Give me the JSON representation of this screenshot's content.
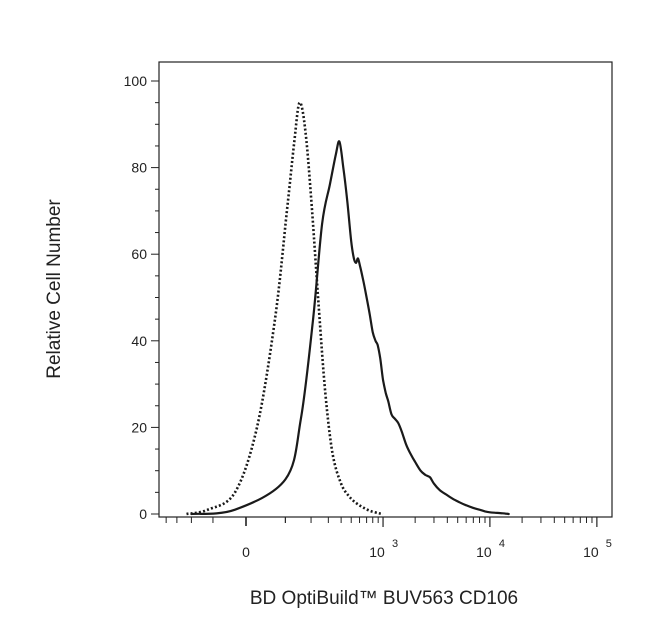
{
  "chart_data": {
    "type": "line",
    "title": "",
    "xlabel": "BD OptiBuild™ BUV563 CD106",
    "ylabel": "Relative Cell Number",
    "ylim": [
      0,
      105
    ],
    "yticks": [
      {
        "value": 0,
        "label": "0"
      },
      {
        "value": 20,
        "label": "20"
      },
      {
        "value": 40,
        "label": "40"
      },
      {
        "value": 60,
        "label": "60"
      },
      {
        "value": 80,
        "label": "80"
      },
      {
        "value": 100,
        "label": "100"
      }
    ],
    "x_scale": "biexponential",
    "xlim": [
      -1000,
      250000
    ],
    "xticks": [
      {
        "value": 0,
        "base": "0",
        "exp": ""
      },
      {
        "value": 1000,
        "base": "10",
        "exp": "3"
      },
      {
        "value": 10000,
        "base": "10",
        "exp": "4"
      },
      {
        "value": 100000,
        "base": "10",
        "exp": "5"
      }
    ],
    "legend": "none",
    "grid": false,
    "series": [
      {
        "style": "dotted",
        "color": "#1a1a1a",
        "points": [
          [
            -230,
            0
          ],
          [
            -120,
            1
          ],
          [
            -30,
            5
          ],
          [
            25,
            20
          ],
          [
            70,
            45
          ],
          [
            105,
            70
          ],
          [
            130,
            86
          ],
          [
            150,
            95
          ],
          [
            175,
            88
          ],
          [
            205,
            70
          ],
          [
            240,
            48
          ],
          [
            280,
            28
          ],
          [
            330,
            14
          ],
          [
            400,
            7
          ],
          [
            480,
            4
          ],
          [
            560,
            2.5
          ],
          [
            650,
            1.5
          ],
          [
            760,
            0.7
          ],
          [
            900,
            0.2
          ],
          [
            1000,
            0
          ]
        ]
      },
      {
        "style": "solid",
        "color": "#1a1a1a",
        "points": [
          [
            -200,
            0
          ],
          [
            -30,
            1
          ],
          [
            100,
            8
          ],
          [
            155,
            22
          ],
          [
            210,
            45
          ],
          [
            260,
            67
          ],
          [
            310,
            76
          ],
          [
            355,
            83
          ],
          [
            385,
            86
          ],
          [
            420,
            80
          ],
          [
            460,
            72
          ],
          [
            500,
            63
          ],
          [
            530,
            59
          ],
          [
            555,
            58
          ],
          [
            580,
            59
          ],
          [
            610,
            57
          ],
          [
            650,
            54
          ],
          [
            700,
            50
          ],
          [
            750,
            46
          ],
          [
            800,
            42
          ],
          [
            850,
            40
          ],
          [
            890,
            39
          ],
          [
            940,
            36
          ],
          [
            1000,
            31
          ],
          [
            1060,
            28
          ],
          [
            1120,
            26
          ],
          [
            1200,
            23
          ],
          [
            1290,
            22
          ],
          [
            1390,
            21
          ],
          [
            1500,
            19
          ],
          [
            1650,
            16
          ],
          [
            1800,
            14
          ],
          [
            2000,
            12
          ],
          [
            2250,
            10
          ],
          [
            2500,
            9
          ],
          [
            2750,
            8.5
          ],
          [
            3000,
            7
          ],
          [
            3400,
            5.5
          ],
          [
            3900,
            4.5
          ],
          [
            4500,
            3.5
          ],
          [
            5200,
            2.7
          ],
          [
            6000,
            2
          ],
          [
            7000,
            1.4
          ],
          [
            8000,
            1
          ],
          [
            9000,
            0.6
          ],
          [
            10000,
            0.4
          ],
          [
            11000,
            0.3
          ],
          [
            12500,
            0.2
          ],
          [
            14000,
            0.1
          ],
          [
            15000,
            0
          ]
        ]
      }
    ]
  }
}
